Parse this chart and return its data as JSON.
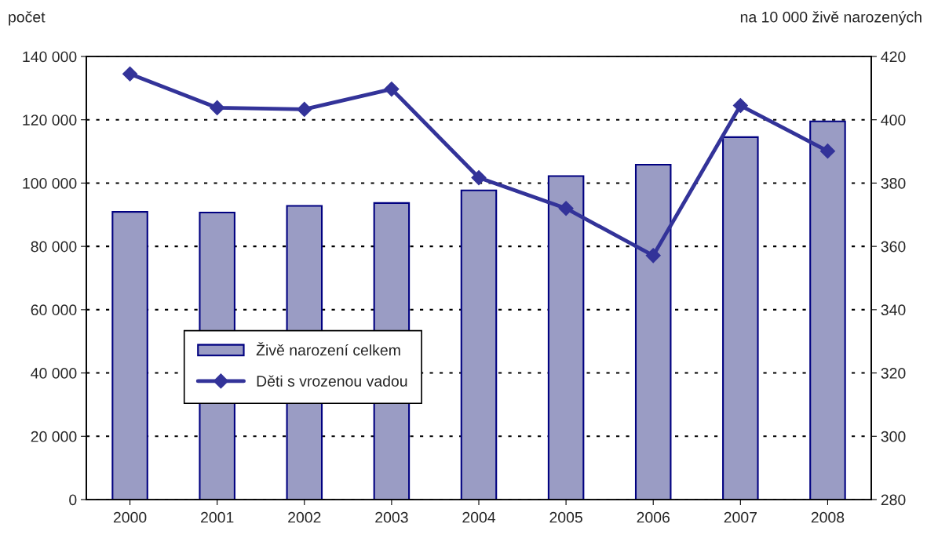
{
  "chart_data": {
    "type": "bar",
    "ylabel": "počet",
    "y2label": "na 10 000 živě narozených",
    "categories": [
      "2000",
      "2001",
      "2002",
      "2003",
      "2004",
      "2005",
      "2006",
      "2007",
      "2008"
    ],
    "series": [
      {
        "name": "Živě narození celkem",
        "color": "#9a9cc4",
        "values": [
          90900,
          90700,
          92800,
          93700,
          97700,
          102200,
          105800,
          114500,
          119500
        ]
      },
      {
        "name": "Děti s vrozenou vadou",
        "type": "line",
        "axis": "y2",
        "color": "#333399",
        "marker": "diamond",
        "values": [
          414.5,
          403.8,
          403.3,
          409.7,
          381.7,
          372.0,
          357.1,
          404.5,
          390.1
        ]
      }
    ],
    "ylim": [
      0,
      140000
    ],
    "yticks": [
      {
        "value": 0,
        "label": "0"
      },
      {
        "value": 20000,
        "label": "20 000"
      },
      {
        "value": 40000,
        "label": "40 000"
      },
      {
        "value": 60000,
        "label": "60 000"
      },
      {
        "value": 80000,
        "label": "80 000"
      },
      {
        "value": 100000,
        "label": "100 000"
      },
      {
        "value": 120000,
        "label": "120 000"
      },
      {
        "value": 140000,
        "label": "140 000"
      }
    ],
    "y2lim": [
      280,
      420
    ],
    "y2ticks": [
      280,
      300,
      320,
      340,
      360,
      380,
      400,
      420
    ],
    "grid": "y",
    "legend": "bottom left"
  }
}
